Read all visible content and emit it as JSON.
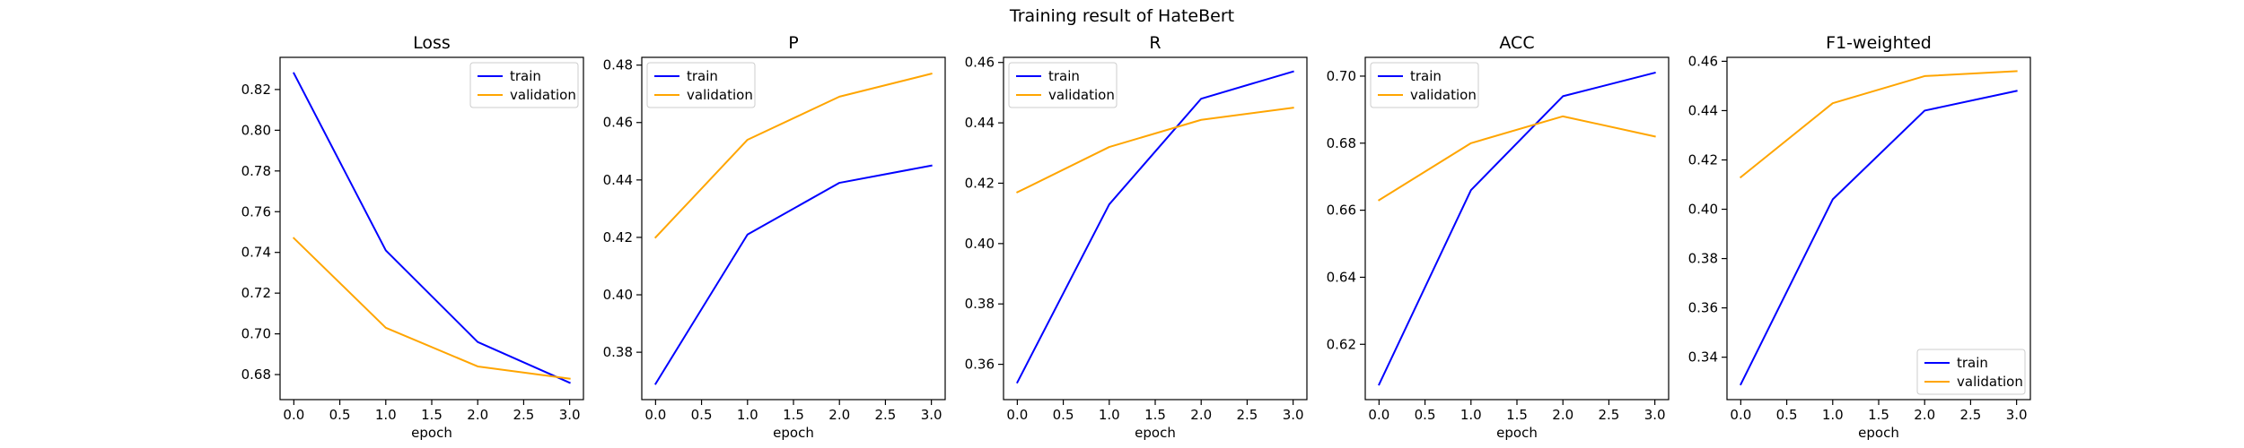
{
  "figure": {
    "suptitle": "Training result of HateBert"
  },
  "colors": {
    "train": "#0000ff",
    "validation": "#ffa500"
  },
  "chart_data": [
    {
      "type": "line",
      "title": "Loss",
      "xlabel": "epoch",
      "ylabel": "",
      "x": [
        0,
        1,
        2,
        3
      ],
      "xlim": [
        -0.15,
        3.15
      ],
      "xticks": [
        0.0,
        0.5,
        1.0,
        1.5,
        2.0,
        2.5,
        3.0
      ],
      "xtick_labels": [
        "0.0",
        "0.5",
        "1.0",
        "1.5",
        "2.0",
        "2.5",
        "3.0"
      ],
      "ylim": [
        0.6677,
        0.8358
      ],
      "yticks": [
        0.68,
        0.7,
        0.72,
        0.74,
        0.76,
        0.78,
        0.8,
        0.82
      ],
      "ytick_labels": [
        "0.68",
        "0.70",
        "0.72",
        "0.74",
        "0.76",
        "0.78",
        "0.80",
        "0.82"
      ],
      "legend_loc": "upper-right",
      "series": [
        {
          "name": "train",
          "values": [
            0.828,
            0.741,
            0.696,
            0.676
          ]
        },
        {
          "name": "validation",
          "values": [
            0.747,
            0.703,
            0.684,
            0.678
          ]
        }
      ]
    },
    {
      "type": "line",
      "title": "P",
      "xlabel": "epoch",
      "ylabel": "",
      "x": [
        0,
        1,
        2,
        3
      ],
      "xlim": [
        -0.15,
        3.15
      ],
      "xticks": [
        0.0,
        0.5,
        1.0,
        1.5,
        2.0,
        2.5,
        3.0
      ],
      "xtick_labels": [
        "0.0",
        "0.5",
        "1.0",
        "1.5",
        "2.0",
        "2.5",
        "3.0"
      ],
      "ylim": [
        0.3635,
        0.4827
      ],
      "yticks": [
        0.38,
        0.4,
        0.42,
        0.44,
        0.46,
        0.48
      ],
      "ytick_labels": [
        "0.38",
        "0.40",
        "0.42",
        "0.44",
        "0.46",
        "0.48"
      ],
      "legend_loc": "upper-left",
      "series": [
        {
          "name": "train",
          "values": [
            0.369,
            0.421,
            0.439,
            0.445
          ]
        },
        {
          "name": "validation",
          "values": [
            0.42,
            0.454,
            0.469,
            0.477
          ]
        }
      ]
    },
    {
      "type": "line",
      "title": "R",
      "xlabel": "epoch",
      "ylabel": "",
      "x": [
        0,
        1,
        2,
        3
      ],
      "xlim": [
        -0.15,
        3.15
      ],
      "xticks": [
        0.0,
        0.5,
        1.0,
        1.5,
        2.0,
        2.5,
        3.0
      ],
      "xtick_labels": [
        "0.0",
        "0.5",
        "1.0",
        "1.5",
        "2.0",
        "2.5",
        "3.0"
      ],
      "ylim": [
        0.3483,
        0.4617
      ],
      "yticks": [
        0.36,
        0.38,
        0.4,
        0.42,
        0.44,
        0.46
      ],
      "ytick_labels": [
        "0.36",
        "0.38",
        "0.40",
        "0.42",
        "0.44",
        "0.46"
      ],
      "legend_loc": "upper-left",
      "series": [
        {
          "name": "train",
          "values": [
            0.354,
            0.413,
            0.448,
            0.457
          ]
        },
        {
          "name": "validation",
          "values": [
            0.417,
            0.432,
            0.441,
            0.445
          ]
        }
      ]
    },
    {
      "type": "line",
      "title": "ACC",
      "xlabel": "epoch",
      "ylabel": "",
      "x": [
        0,
        1,
        2,
        3
      ],
      "xlim": [
        -0.15,
        3.15
      ],
      "xticks": [
        0.0,
        0.5,
        1.0,
        1.5,
        2.0,
        2.5,
        3.0
      ],
      "xtick_labels": [
        "0.0",
        "0.5",
        "1.0",
        "1.5",
        "2.0",
        "2.5",
        "3.0"
      ],
      "ylim": [
        0.6035,
        0.7056
      ],
      "yticks": [
        0.62,
        0.64,
        0.66,
        0.68,
        0.7
      ],
      "ytick_labels": [
        "0.62",
        "0.64",
        "0.66",
        "0.68",
        "0.70"
      ],
      "legend_loc": "upper-left",
      "series": [
        {
          "name": "train",
          "values": [
            0.608,
            0.666,
            0.694,
            0.701
          ]
        },
        {
          "name": "validation",
          "values": [
            0.663,
            0.68,
            0.688,
            0.682
          ]
        }
      ]
    },
    {
      "type": "line",
      "title": "F1-weighted",
      "xlabel": "epoch",
      "ylabel": "",
      "x": [
        0,
        1,
        2,
        3
      ],
      "xlim": [
        -0.15,
        3.15
      ],
      "xticks": [
        0.0,
        0.5,
        1.0,
        1.5,
        2.0,
        2.5,
        3.0
      ],
      "xtick_labels": [
        "0.0",
        "0.5",
        "1.0",
        "1.5",
        "2.0",
        "2.5",
        "3.0"
      ],
      "ylim": [
        0.3228,
        0.4616
      ],
      "yticks": [
        0.34,
        0.36,
        0.38,
        0.4,
        0.42,
        0.44,
        0.46
      ],
      "ytick_labels": [
        "0.34",
        "0.36",
        "0.38",
        "0.40",
        "0.42",
        "0.44",
        "0.46"
      ],
      "legend_loc": "lower-right",
      "series": [
        {
          "name": "train",
          "values": [
            0.329,
            0.404,
            0.44,
            0.448
          ]
        },
        {
          "name": "validation",
          "values": [
            0.413,
            0.443,
            0.454,
            0.456
          ]
        }
      ]
    }
  ]
}
